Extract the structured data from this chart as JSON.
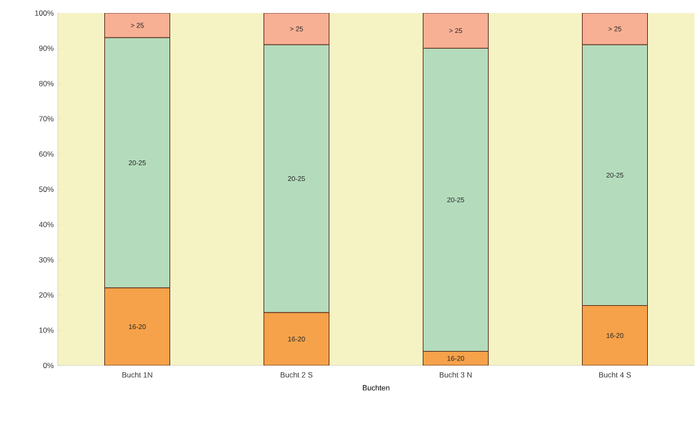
{
  "chart_data": {
    "type": "bar",
    "stacked": true,
    "xlabel": "Buchten",
    "categories": [
      "Bucht 1N",
      "Bucht 2 S",
      "Bucht 3 N",
      "Bucht 4 S"
    ],
    "series": [
      {
        "name": "16-20",
        "color": "#f6a24a",
        "values": [
          22,
          15,
          4,
          17
        ]
      },
      {
        "name": "20-25",
        "color": "#b4dcbc",
        "values": [
          71,
          76,
          86,
          74
        ]
      },
      {
        "name": "> 25",
        "color": "#f8b094",
        "values": [
          7,
          9,
          10,
          9
        ]
      }
    ],
    "ylim": [
      0,
      100
    ],
    "yticks": [
      {
        "value": 0,
        "label": "0%"
      },
      {
        "value": 10,
        "label": "10%"
      },
      {
        "value": 20,
        "label": "20%"
      },
      {
        "value": 30,
        "label": "30%"
      },
      {
        "value": 40,
        "label": "40%"
      },
      {
        "value": 50,
        "label": "50%"
      },
      {
        "value": 60,
        "label": "60%"
      },
      {
        "value": 70,
        "label": "70%"
      },
      {
        "value": 80,
        "label": "80%"
      },
      {
        "value": 90,
        "label": "90%"
      },
      {
        "value": 100,
        "label": "100%"
      }
    ],
    "grid": false
  }
}
